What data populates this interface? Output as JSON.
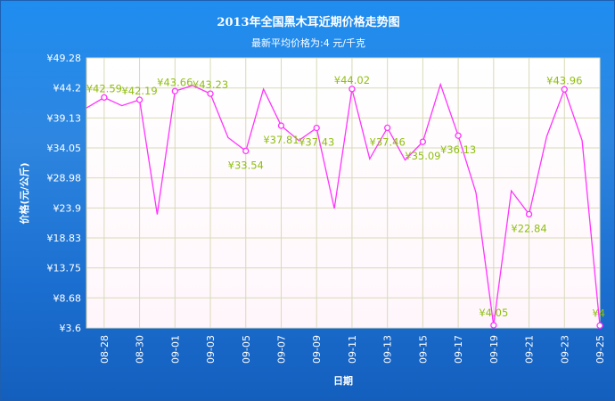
{
  "chart_data": {
    "type": "line",
    "title": "2013年全国黑木耳近期价格走势图",
    "subtitle": "最新平均价格为:4 元/千克",
    "xlabel": "日期",
    "ylabel": "价格(元/公斤)",
    "y_prefix": "¥",
    "ylim": [
      3.6,
      49.28
    ],
    "y_ticks": [
      "49.28",
      "44.2",
      "39.13",
      "34.05",
      "28.98",
      "23.9",
      "18.83",
      "13.75",
      "8.68",
      "3.6"
    ],
    "x_tick_labels": [
      "08-28",
      "08-30",
      "09-01",
      "09-03",
      "09-05",
      "09-07",
      "09-09",
      "09-11",
      "09-13",
      "09-15",
      "09-17",
      "09-19",
      "09-21",
      "09-23",
      "09-25"
    ],
    "grid": true,
    "series": [
      {
        "color": "#ff33ff",
        "points": [
          {
            "x": "08-27",
            "y": 40.8
          },
          {
            "x": "08-28",
            "y": 42.59,
            "label": "¥42.59"
          },
          {
            "x": "08-29",
            "y": 41.2
          },
          {
            "x": "08-30",
            "y": 42.19,
            "label": "¥42.19"
          },
          {
            "x": "08-31",
            "y": 22.8
          },
          {
            "x": "09-01",
            "y": 43.66,
            "label": "¥43.66"
          },
          {
            "x": "09-02",
            "y": 44.6
          },
          {
            "x": "09-03",
            "y": 43.23,
            "label": "¥43.23"
          },
          {
            "x": "09-04",
            "y": 35.8
          },
          {
            "x": "09-05",
            "y": 33.54,
            "label": "¥33.54"
          },
          {
            "x": "09-06",
            "y": 44.0
          },
          {
            "x": "09-07",
            "y": 37.81,
            "label": "¥37.81"
          },
          {
            "x": "09-08",
            "y": 35.3
          },
          {
            "x": "09-09",
            "y": 37.43,
            "label": "¥37.43"
          },
          {
            "x": "09-10",
            "y": 23.8
          },
          {
            "x": "09-11",
            "y": 44.02,
            "label": "¥44.02"
          },
          {
            "x": "09-12",
            "y": 32.2
          },
          {
            "x": "09-13",
            "y": 37.46,
            "label": "¥37.46"
          },
          {
            "x": "09-14",
            "y": 32.0
          },
          {
            "x": "09-15",
            "y": 35.09,
            "label": "¥35.09"
          },
          {
            "x": "09-16",
            "y": 44.8
          },
          {
            "x": "09-17",
            "y": 36.13,
            "label": "¥36.13"
          },
          {
            "x": "09-18",
            "y": 26.5
          },
          {
            "x": "09-19",
            "y": 4.05,
            "label": "¥4.05"
          },
          {
            "x": "09-20",
            "y": 26.8
          },
          {
            "x": "09-21",
            "y": 22.84,
            "label": "¥22.84"
          },
          {
            "x": "09-22",
            "y": 36.0
          },
          {
            "x": "09-23",
            "y": 43.96,
            "label": "¥43.96"
          },
          {
            "x": "09-24",
            "y": 35.3
          },
          {
            "x": "09-25",
            "y": 4.0,
            "label": "¥4"
          }
        ]
      }
    ]
  }
}
